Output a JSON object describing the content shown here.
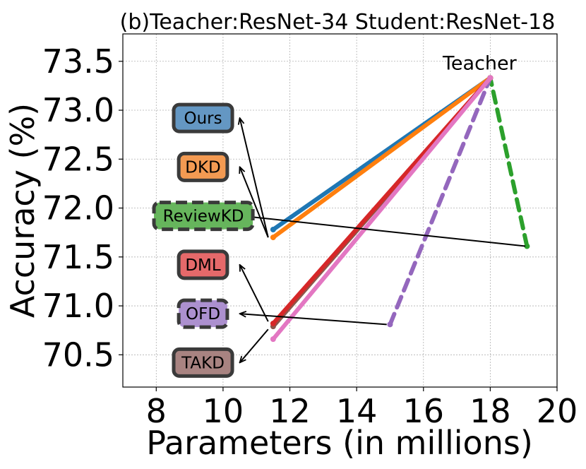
{
  "chart_data": {
    "type": "line",
    "title": "(b)Teacher:ResNet-34 Student:ResNet-18",
    "xlabel": "Parameters (in millions)",
    "ylabel": "Accuracy (%)",
    "xlim": [
      7,
      20
    ],
    "ylim": [
      70.17,
      73.78
    ],
    "x_ticks": [
      8,
      10,
      12,
      14,
      16,
      18,
      20
    ],
    "y_ticks": [
      70.5,
      71.0,
      71.5,
      72.0,
      72.5,
      73.0,
      73.5
    ],
    "grid": true,
    "teacher": {
      "label": "Teacher",
      "x": 18.0,
      "y": 73.33
    },
    "series": [
      {
        "name": "Ours",
        "color": "#1f77b4",
        "dashed": false,
        "x": [
          11.5,
          18.0
        ],
        "y": [
          71.78,
          73.33
        ]
      },
      {
        "name": "DKD",
        "color": "#ff7f0e",
        "dashed": false,
        "x": [
          11.5,
          18.0
        ],
        "y": [
          71.7,
          73.33
        ]
      },
      {
        "name": "ReviewKD",
        "color": "#2ca02c",
        "dashed": true,
        "x": [
          19.1,
          18.0
        ],
        "y": [
          71.61,
          73.33
        ]
      },
      {
        "name": "OFD",
        "color": "#9467bd",
        "dashed": true,
        "x": [
          15.0,
          18.0
        ],
        "y": [
          70.81,
          73.33
        ]
      },
      {
        "name": "TAKD",
        "color": "#8c564b",
        "dashed": false,
        "x": [
          11.5,
          18.0
        ],
        "y": [
          70.79,
          73.33
        ]
      },
      {
        "name": "DML",
        "color": "#d62728",
        "dashed": false,
        "x": [
          11.5,
          18.0
        ],
        "y": [
          70.82,
          73.33
        ]
      },
      {
        "name": "",
        "color": "#e377c2",
        "dashed": false,
        "x": [
          11.5,
          18.0
        ],
        "y": [
          70.66,
          73.33
        ]
      }
    ],
    "annotations": [
      {
        "text": "Ours",
        "box_color": "#6497c3",
        "dashed": false,
        "box_x": 9.4,
        "box_y": 72.92,
        "arrow_from": [
          11.35,
          71.7
        ],
        "arrow_to": [
          10.5,
          72.92
        ]
      },
      {
        "text": "DKD",
        "box_color": "#f39a52",
        "dashed": false,
        "box_x": 9.4,
        "box_y": 72.42,
        "arrow_from": [
          11.35,
          71.7
        ],
        "arrow_to": [
          10.5,
          72.42
        ]
      },
      {
        "text": "ReviewKD",
        "box_color": "#66b55c",
        "dashed": true,
        "box_x": 9.2,
        "box_y": 71.92,
        "arrow_from": [
          19.05,
          71.61
        ],
        "arrow_to": [
          10.55,
          71.92
        ]
      },
      {
        "text": "DML",
        "box_color": "#e5696a",
        "dashed": false,
        "box_x": 9.4,
        "box_y": 71.42,
        "arrow_from": [
          11.35,
          70.84
        ],
        "arrow_to": [
          10.5,
          71.42
        ]
      },
      {
        "text": "OFD",
        "box_color": "#ac90cf",
        "dashed": true,
        "box_x": 9.4,
        "box_y": 70.92,
        "arrow_from": [
          14.9,
          70.81
        ],
        "arrow_to": [
          10.5,
          70.92
        ]
      },
      {
        "text": "TAKD",
        "box_color": "#a88381",
        "dashed": false,
        "box_x": 9.4,
        "box_y": 70.42,
        "arrow_from": [
          11.35,
          70.76
        ],
        "arrow_to": [
          10.5,
          70.42
        ]
      }
    ]
  }
}
